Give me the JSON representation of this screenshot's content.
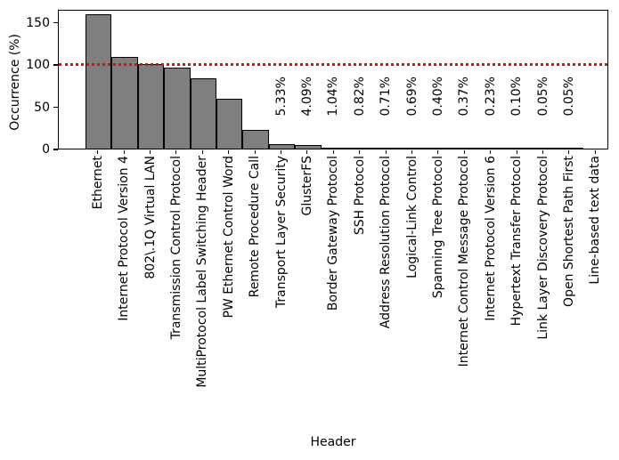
{
  "chart_data": {
    "type": "bar",
    "title": "",
    "xlabel": "Header",
    "ylabel": "Occurrence (%)",
    "ylim": [
      0,
      165
    ],
    "yticks": [
      0,
      50,
      100,
      150
    ],
    "grid": false,
    "legend": "none",
    "reference_line": {
      "y": 100,
      "color": "#ff0000",
      "style": "dotted"
    },
    "bar_fill_color": "#7f7f7f",
    "bar_edge_color": "#000000",
    "categories": [
      "Ethernet",
      "Internet Protocol Version 4",
      "802\\.1Q Virtual LAN",
      "Transmission Control Protocol",
      "MultiProtocol Label Switching Header",
      "PW Ethernet Control Word",
      "Remote Procedure Call",
      "Transport Layer Security",
      "GlusterFS",
      "Border Gateway Protocol",
      "SSH Protocol",
      "Address Resolution Protocol",
      "Logical-Link Control",
      "Spanning Tree Protocol",
      "Internet Control Message Protocol",
      "Internet Protocol Version 6",
      "Hypertext Transfer Protocol",
      "Link Layer Discovery Protocol",
      "Open Shortest Path First",
      "Line-based text data"
    ],
    "values": [
      159,
      108,
      100,
      96,
      83,
      59,
      22,
      5.33,
      4.09,
      1.04,
      0.82,
      0.71,
      0.69,
      0.4,
      0.37,
      0.23,
      0.1,
      0.05,
      0.05,
      0
    ],
    "bar_labels": [
      null,
      null,
      null,
      null,
      null,
      null,
      null,
      "5.33%",
      "4.09%",
      "1.04%",
      "0.82%",
      "0.71%",
      "0.69%",
      "0.40%",
      "0.37%",
      "0.23%",
      "0.10%",
      "0.05%",
      "0.05%",
      null
    ]
  }
}
